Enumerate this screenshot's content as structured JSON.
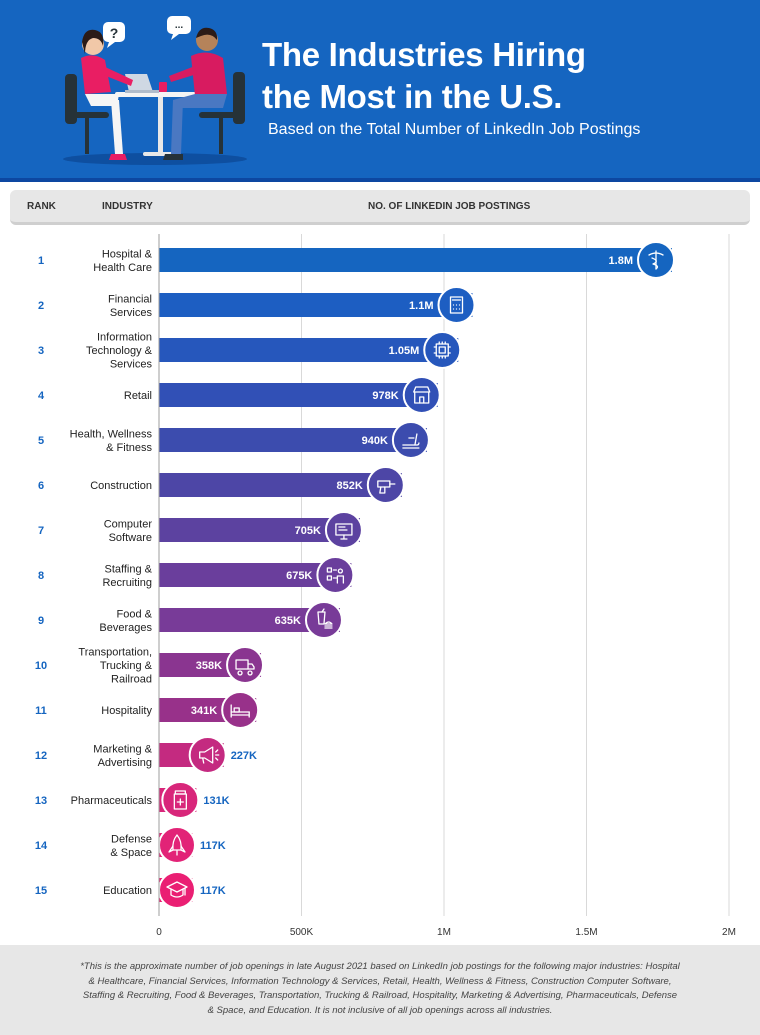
{
  "header": {
    "title_line1": "The Industries Hiring",
    "title_line2": "the Most in the U.S.",
    "subtitle": "Based on the Total Number of LinkedIn Job Postings",
    "bubble_left": "?",
    "bubble_right": "...",
    "background_color": "#1565c0"
  },
  "columns": {
    "rank": "RANK",
    "industry": "INDUSTRY",
    "postings": "NO. OF LINKEDIN JOB POSTINGS"
  },
  "chart_data": {
    "type": "bar",
    "orientation": "horizontal",
    "ranks": [
      "1",
      "2",
      "3",
      "4",
      "5",
      "6",
      "7",
      "8",
      "9",
      "10",
      "11",
      "12",
      "13",
      "14",
      "15"
    ],
    "categories": [
      [
        "Hospital &",
        "Health Care"
      ],
      [
        "Financial",
        "Services"
      ],
      [
        "Information",
        "Technology &",
        "Services"
      ],
      [
        "Retail"
      ],
      [
        "Health, Wellness",
        "& Fitness"
      ],
      [
        "Construction"
      ],
      [
        "Computer",
        "Software"
      ],
      [
        "Staffing &",
        "Recruiting"
      ],
      [
        "Food &",
        "Beverages"
      ],
      [
        "Transportation,",
        "Trucking &",
        "Railroad"
      ],
      [
        "Hospitality"
      ],
      [
        "Marketing &",
        "Advertising"
      ],
      [
        "Pharmaceuticals"
      ],
      [
        "Defense",
        "& Space"
      ],
      [
        "Education"
      ]
    ],
    "values": [
      1800000,
      1100000,
      1050000,
      978000,
      940000,
      852000,
      705000,
      675000,
      635000,
      358000,
      341000,
      227000,
      131000,
      117000,
      117000
    ],
    "value_labels": [
      "1.8M",
      "1.1M",
      "1.05M",
      "978K",
      "940K",
      "852K",
      "705K",
      "675K",
      "635K",
      "358K",
      "341K",
      "227K",
      "131K",
      "117K",
      "117K"
    ],
    "icons": [
      "caduceus-icon",
      "calculator-icon",
      "microchip-icon",
      "storefront-icon",
      "treadmill-icon",
      "drill-icon",
      "monitor-icon",
      "checklist-person-icon",
      "drink-burger-icon",
      "truck-icon",
      "bed-icon",
      "megaphone-icon",
      "pill-bottle-icon",
      "rocket-icon",
      "graduation-cap-icon"
    ],
    "colors": [
      "#1565c0",
      "#1d5ec2",
      "#2657bc",
      "#3150b6",
      "#3c4cae",
      "#4d46a6",
      "#5c42a0",
      "#6a3e9c",
      "#783b98",
      "#8a3590",
      "#98318a",
      "#c42a80",
      "#d8267a",
      "#e22377",
      "#ea1f73"
    ],
    "xlim": [
      0,
      2000000
    ],
    "xticks": [
      0,
      500000,
      1000000,
      1500000,
      2000000
    ],
    "xtick_labels": [
      "0",
      "500K",
      "1M",
      "1.5M",
      "2M"
    ],
    "grid": true
  },
  "footnote": "*This is the approximate number of job openings in late August 2021 based on LinkedIn job postings for the following major industries: Hospital & Healthcare, Financial Services, Information Technology & Services, Retail, Health, Wellness & Fitness, Construction Computer Software, Staffing & Recruiting, Food & Beverages, Transportation, Trucking & Railroad, Hospitality, Marketing & Advertising, Pharmaceuticals, Defense & Space, and Education. It is not inclusive of all job openings across all industries."
}
